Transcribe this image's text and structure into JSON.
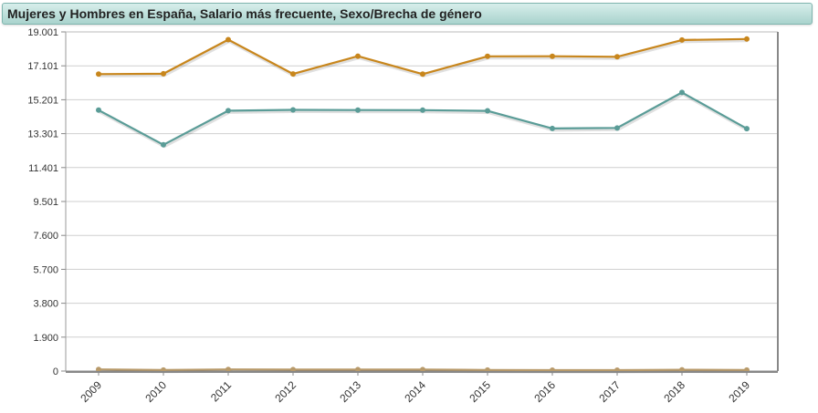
{
  "title": "Mujeres y Hombres en España, Salario más frecuente, Sexo/Brecha de género",
  "chart_data": {
    "type": "line",
    "title": "Mujeres y Hombres en España, Salario más frecuente, Sexo/Brecha de género",
    "categories": [
      "2009",
      "2010",
      "2011",
      "2012",
      "2013",
      "2014",
      "2015",
      "2016",
      "2017",
      "2018",
      "2019"
    ],
    "yticks": [
      "0",
      "1.900",
      "3.800",
      "5.700",
      "7.600",
      "9.501",
      "11.401",
      "13.301",
      "15.201",
      "17.101",
      "19.001"
    ],
    "ytick_values": [
      0,
      1900,
      3800,
      5700,
      7600,
      9501,
      11401,
      13301,
      15201,
      17101,
      19001
    ],
    "ylim": [
      0,
      19001
    ],
    "grid": true,
    "legend": "none",
    "series": [
      {
        "color": "#c8861c",
        "values": [
          16637,
          16656,
          18568,
          16647,
          17644,
          16636,
          17634,
          17636,
          17609,
          18545,
          18602
        ]
      },
      {
        "color": "#5a9c97",
        "values": [
          14620,
          12680,
          14590,
          14632,
          14622,
          14618,
          14580,
          13590,
          13620,
          15610,
          13580
        ]
      },
      {
        "color": "#b89a6a",
        "values": [
          90,
          60,
          90,
          80,
          80,
          80,
          60,
          50,
          50,
          70,
          60
        ]
      }
    ]
  }
}
